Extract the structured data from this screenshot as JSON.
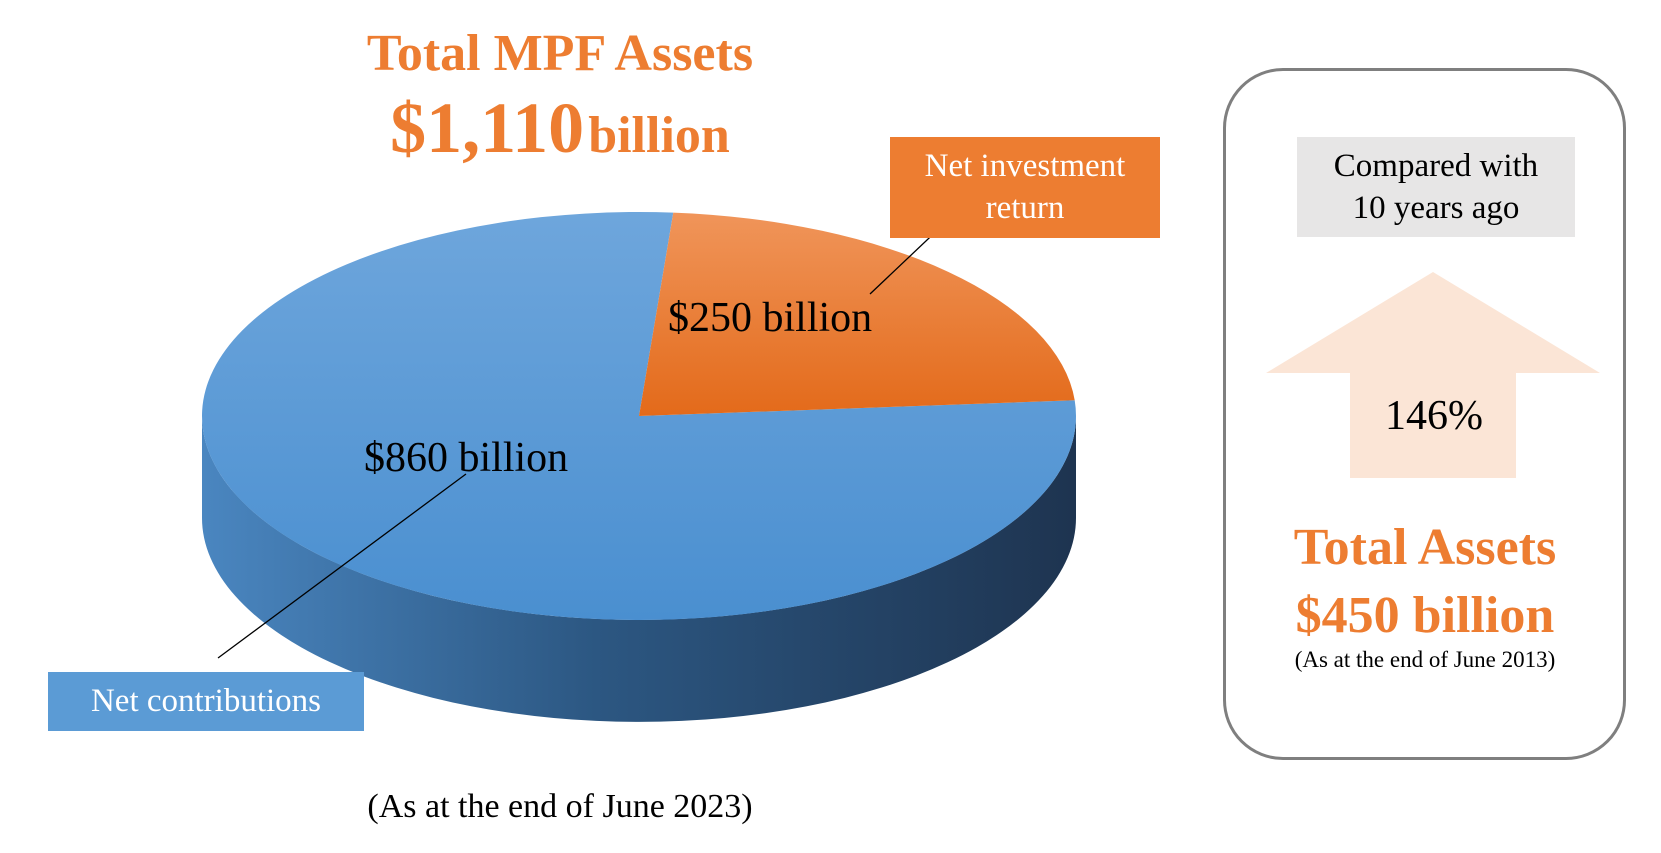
{
  "header": {
    "title_line1": "Total MPF Assets",
    "title_amount": "$1,110",
    "title_unit": "billion"
  },
  "chart_data": {
    "type": "pie",
    "title": "Total MPF Assets $1,110 billion",
    "slices": [
      {
        "label": "Net contributions",
        "value": 860,
        "value_label": "$860 billion",
        "color": "#5b9bd5"
      },
      {
        "label": "Net investment return",
        "value": 250,
        "value_label": "$250 billion",
        "color": "#ed7d31"
      }
    ],
    "labels": {
      "net_contributions": "Net contributions",
      "net_investment_line1": "Net investment",
      "net_investment_line2": "return",
      "value_contrib": "$860 billion",
      "value_return": "$250 billion"
    }
  },
  "footnote": "(As at the end of June 2023)",
  "comparison": {
    "heading_line1": "Compared with",
    "heading_line2": "10 years ago",
    "change_percent": "146%",
    "assets_line1": "Total Assets",
    "assets_line2": "$450 billion",
    "as_at_note": "(As at the end of June 2013)"
  },
  "colors": {
    "accent_orange": "#ed7d31",
    "blue": "#5b9bd5",
    "arrow_fill": "#fbe5d6",
    "compare_box": "#e7e6e6",
    "panel_border": "#7f7f7f"
  }
}
